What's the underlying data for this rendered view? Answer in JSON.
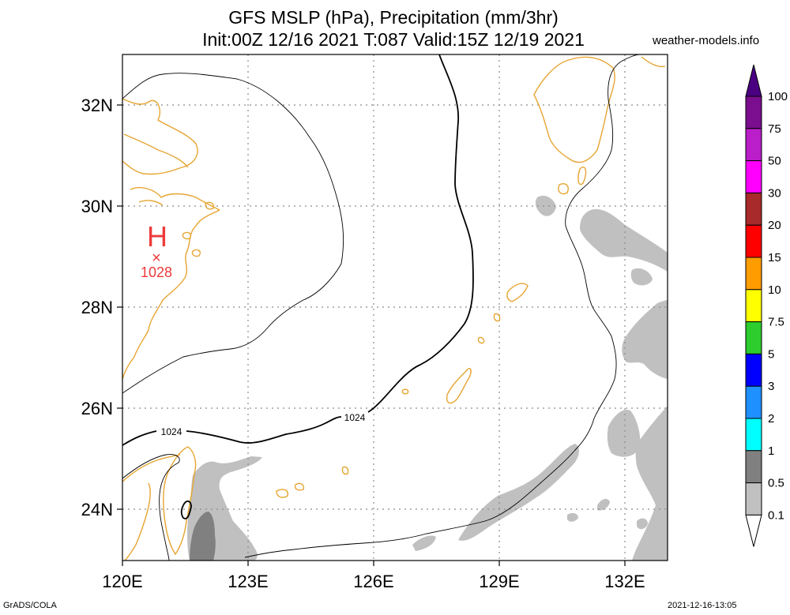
{
  "header": {
    "title_line1": "GFS MSLP (hPa), Precipitation (mm/3hr)",
    "title_line2": "Init:00Z 12/16 2021 T:087 Valid:15Z 12/19 2021",
    "source": "weather-models.info"
  },
  "footer": {
    "left": "GrADS/COLA",
    "right": "2021-12-16-13:05"
  },
  "map": {
    "lon_range": [
      120,
      133
    ],
    "lat_range": [
      23,
      33
    ],
    "lat_labels": [
      "32N",
      "30N",
      "28N",
      "26N",
      "24N"
    ],
    "lon_labels": [
      "120E",
      "123E",
      "126E",
      "129E",
      "132E"
    ],
    "coastline_color": "#e6a532",
    "gridline_style": "dotted",
    "isobar_labels": [
      "1024",
      "1024"
    ],
    "high_pressure": {
      "symbol": "H",
      "marker": "×",
      "value": "1028",
      "color": "#ee3b3b"
    }
  },
  "colorbar": {
    "labels": [
      "100",
      "75",
      "50",
      "30",
      "20",
      "15",
      "10",
      "7.5",
      "5",
      "3",
      "2",
      "1",
      "0.5",
      "0.1"
    ],
    "colors": [
      "#7a0e8e",
      "#b91ec8",
      "#ff00ff",
      "#a82a2a",
      "#ff0000",
      "#ff9c00",
      "#ffff00",
      "#2ccd2c",
      "#0000ff",
      "#1e90ff",
      "#00ffff",
      "#808080",
      "#c0c0c0"
    ],
    "top_tip_color": "#4b0082",
    "bottom_tip_color": "#ffffff"
  }
}
